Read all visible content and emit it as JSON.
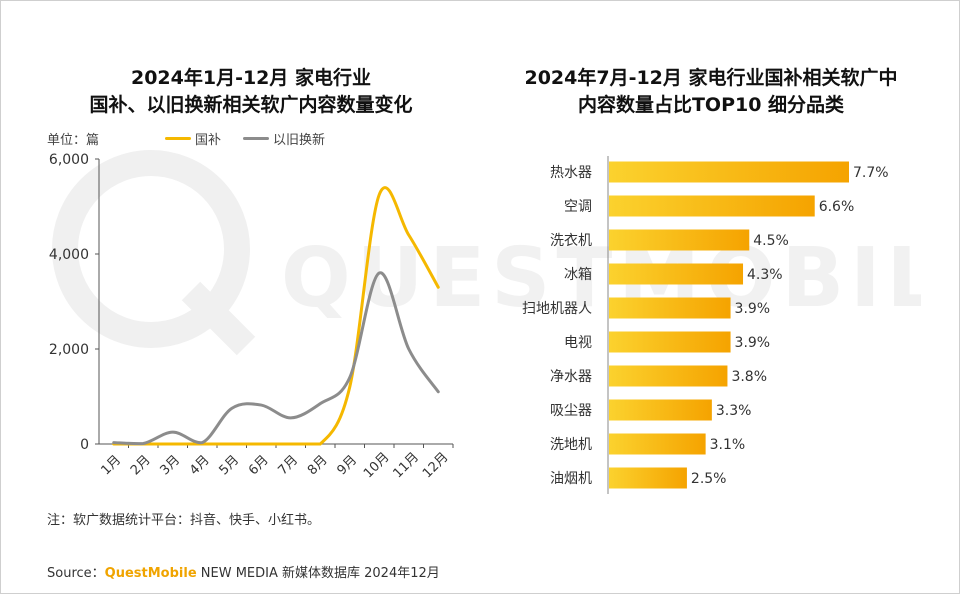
{
  "left_chart": {
    "title_line1": "2024年1月-12月 家电行业",
    "title_line2": "国补、以旧换新相关软广内容数量变化",
    "unit_label": "单位：篇",
    "legend": [
      {
        "name": "国补",
        "color": "#f5b800"
      },
      {
        "name": "以旧换新",
        "color": "#8c8c8c"
      }
    ]
  },
  "right_chart": {
    "title_line1": "2024年7月-12月 家电行业国补相关软广中",
    "title_line2": "内容数量占比TOP10 细分品类"
  },
  "chart_data": [
    {
      "type": "line",
      "title": "2024年1月-12月 家电行业 国补、以旧换新相关软广内容数量变化",
      "xlabel": "",
      "ylabel": "单位：篇",
      "x": [
        "1月",
        "2月",
        "3月",
        "4月",
        "5月",
        "6月",
        "7月",
        "8月",
        "9月",
        "10月",
        "11月",
        "12月"
      ],
      "y_ticks": [
        "0",
        "2,000",
        "4,000",
        "6,000"
      ],
      "y_tick_values": [
        0,
        2000,
        4000,
        6000
      ],
      "ylim": [
        0,
        6000
      ],
      "legend_position": "top",
      "series": [
        {
          "name": "国补",
          "color": "#f5b800",
          "values": [
            0,
            0,
            0,
            0,
            0,
            0,
            0,
            0,
            1200,
            5250,
            4400,
            3300
          ]
        },
        {
          "name": "以旧换新",
          "color": "#8c8c8c",
          "values": [
            30,
            10,
            250,
            30,
            750,
            820,
            550,
            850,
            1400,
            3600,
            2000,
            1100
          ]
        }
      ]
    },
    {
      "type": "bar",
      "orientation": "horizontal",
      "title": "2024年7月-12月 家电行业国补相关软广中内容数量占比TOP10 细分品类",
      "categories": [
        "热水器",
        "空调",
        "洗衣机",
        "冰箱",
        "扫地机器人",
        "电视",
        "净水器",
        "吸尘器",
        "洗地机",
        "油烟机"
      ],
      "values": [
        7.7,
        6.6,
        4.5,
        4.3,
        3.9,
        3.9,
        3.8,
        3.3,
        3.1,
        2.5
      ],
      "labels": [
        "7.7%",
        "6.6%",
        "4.5%",
        "4.3%",
        "3.9%",
        "3.9%",
        "3.8%",
        "3.3%",
        "3.1%",
        "2.5%"
      ],
      "xlim": [
        0,
        7.7
      ],
      "bar_color_start": "#fbd22e",
      "bar_color_end": "#f5a300"
    }
  ],
  "footer": {
    "note": "注：软广数据统计平台：抖音、快手、小红书。",
    "source_label": "Source：",
    "source_brand": "QuestMobile",
    "source_rest": " NEW MEDIA 新媒体数据库 2024年12月"
  },
  "watermark": {
    "text": "QUESTMOBILE"
  }
}
